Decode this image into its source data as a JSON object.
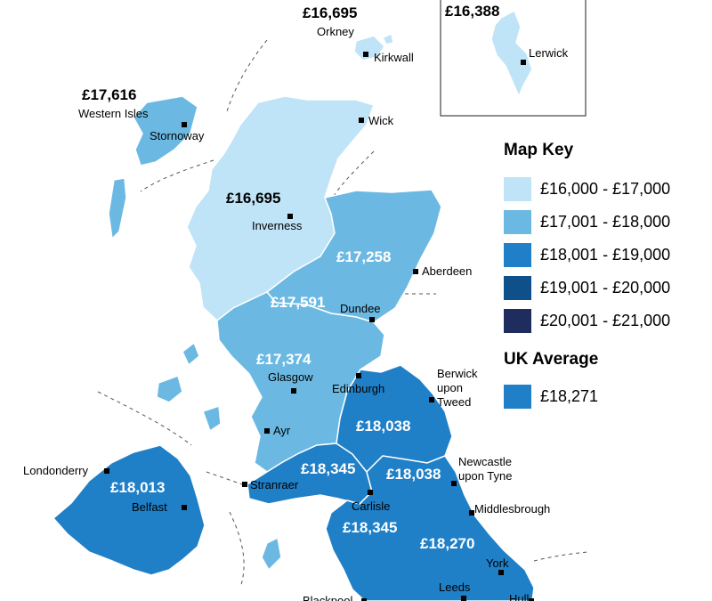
{
  "colors": {
    "band1": "#bfe3f7",
    "band2": "#6bb9e3",
    "band3": "#1f7fc7",
    "band4": "#0f4f8a",
    "band5": "#1f2d5e",
    "uk_average": "#1f7fc7"
  },
  "regions": {
    "orkney": {
      "name": "Orkney",
      "value": "£16,695"
    },
    "shetland": {
      "value": "£16,388"
    },
    "western_isles": {
      "name": "Western Isles",
      "value": "£17,616"
    },
    "highlands": {
      "value": "£16,695"
    },
    "north_east": {
      "value": "£17,258"
    },
    "tayside": {
      "value": "£17,591"
    },
    "central_scotland": {
      "value": "£17,374"
    },
    "northumberland": {
      "value": "£18,038"
    },
    "dumfries": {
      "value": "£18,345"
    },
    "tyne": {
      "value": "£18,038"
    },
    "northern_ireland": {
      "value": "£18,013"
    },
    "cumbria": {
      "value": "£18,345"
    },
    "yorkshire": {
      "value": "£18,270"
    }
  },
  "places": [
    "Kirkwall",
    "Lerwick",
    "Stornoway",
    "Wick",
    "Inverness",
    "Aberdeen",
    "Dundee",
    "Glasgow",
    "Edinburgh",
    "Berwick upon Tweed",
    "Ayr",
    "Londonderry",
    "Stranraer",
    "Newcastle upon Tyne",
    "Belfast",
    "Carlisle",
    "Middlesbrough",
    "York",
    "Leeds",
    "Hull",
    "Blackpool"
  ],
  "place_labels": {
    "kirkwall": "Kirkwall",
    "lerwick": "Lerwick",
    "stornoway": "Stornoway",
    "wick": "Wick",
    "inverness": "Inverness",
    "aberdeen": "Aberdeen",
    "dundee": "Dundee",
    "glasgow": "Glasgow",
    "edinburgh": "Edinburgh",
    "berwick_1": "Berwick",
    "berwick_2": "upon",
    "berwick_3": "Tweed",
    "ayr": "Ayr",
    "londonderry": "Londonderry",
    "stranraer": "Stranraer",
    "newcastle_1": "Newcastle",
    "newcastle_2": "upon Tyne",
    "belfast": "Belfast",
    "carlisle": "Carlisle",
    "middlesbrough": "Middlesbrough",
    "york": "York",
    "leeds": "Leeds",
    "hull": "Hull",
    "blackpool": "Blackpool"
  },
  "legend": {
    "title": "Map Key",
    "items": [
      {
        "label": "£16,000 - £17,000",
        "color": "#bfe3f7"
      },
      {
        "label": "£17,001 - £18,000",
        "color": "#6bb9e3"
      },
      {
        "label": "£18,001 - £19,000",
        "color": "#1f7fc7"
      },
      {
        "label": "£19,001 - £20,000",
        "color": "#0f4f8a"
      },
      {
        "label": "£20,001 - £21,000",
        "color": "#1f2d5e"
      }
    ],
    "average_title": "UK Average",
    "average_value": "£18,271",
    "average_color": "#1f7fc7"
  }
}
